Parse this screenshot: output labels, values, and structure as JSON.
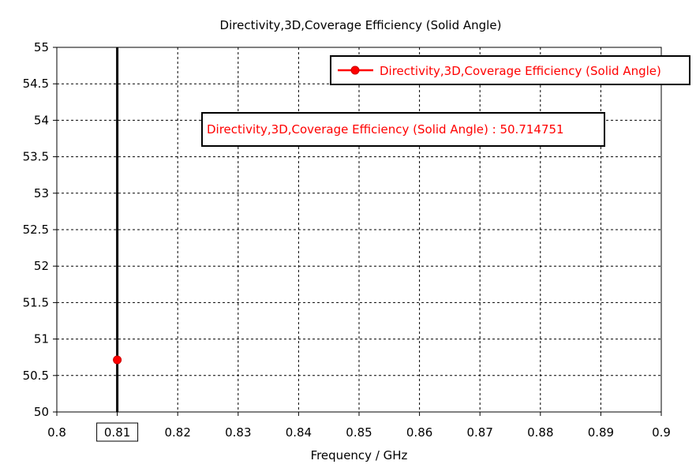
{
  "chart_data": {
    "type": "scatter",
    "title": "Directivity,3D,Coverage Efficiency (Solid Angle)",
    "xlabel": "Frequency / GHz",
    "ylabel": "",
    "xlim": [
      0.8,
      0.9
    ],
    "ylim": [
      50,
      55
    ],
    "x_ticks": [
      "0.8",
      "0.81",
      "0.82",
      "0.83",
      "0.84",
      "0.85",
      "0.86",
      "0.87",
      "0.88",
      "0.89",
      "0.9"
    ],
    "y_ticks": [
      "50",
      "50.5",
      "51",
      "51.5",
      "52",
      "52.5",
      "53",
      "53.5",
      "54",
      "54.5",
      "55"
    ],
    "grid": true,
    "legend_position": "top-right",
    "series": [
      {
        "name": "Directivity,3D,Coverage Efficiency (Solid Angle)",
        "color": "#ff0000",
        "x": [
          0.81
        ],
        "y": [
          50.714751
        ]
      }
    ],
    "marker_line": {
      "x": 0.81,
      "label": "0.81",
      "color": "#000000"
    },
    "annotation": {
      "text": "Directivity,3D,Coverage Efficiency (Solid Angle) : 50.714751",
      "color": "#ff0000"
    }
  }
}
